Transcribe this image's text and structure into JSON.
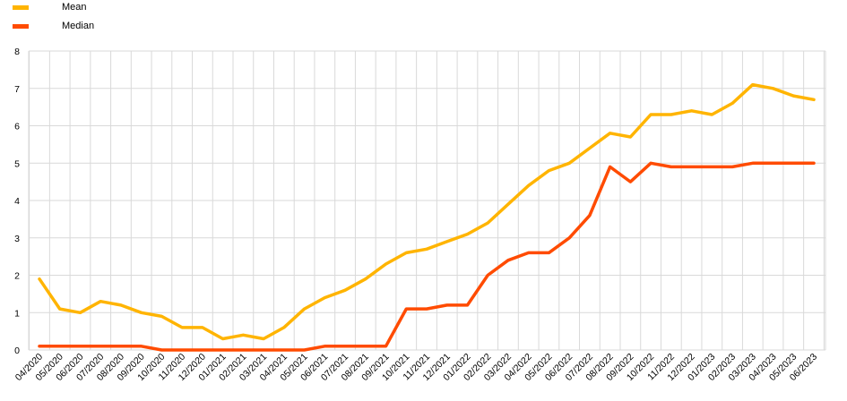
{
  "chart_data": {
    "type": "line",
    "title": "",
    "xlabel": "",
    "ylabel": "",
    "ylim": [
      0,
      8
    ],
    "yticks": [
      0,
      1,
      2,
      3,
      4,
      5,
      6,
      7,
      8
    ],
    "grid": true,
    "legend_position": "top-left",
    "categories": [
      "04/2020",
      "05/2020",
      "06/2020",
      "07/2020",
      "08/2020",
      "09/2020",
      "10/2020",
      "11/2020",
      "12/2020",
      "01/2021",
      "02/2021",
      "03/2021",
      "04/2021",
      "05/2021",
      "06/2021",
      "07/2021",
      "08/2021",
      "09/2021",
      "10/2021",
      "11/2021",
      "12/2021",
      "01/2022",
      "02/2022",
      "03/2022",
      "04/2022",
      "05/2022",
      "06/2022",
      "07/2022",
      "08/2022",
      "09/2022",
      "10/2022",
      "11/2022",
      "12/2022",
      "01/2023",
      "02/2023",
      "03/2023",
      "04/2023",
      "05/2023",
      "06/2023"
    ],
    "series": [
      {
        "name": "Mean",
        "color": "#FFB400",
        "values": [
          1.9,
          1.1,
          1.0,
          1.3,
          1.2,
          1.0,
          0.9,
          0.6,
          0.6,
          0.3,
          0.4,
          0.3,
          0.6,
          1.1,
          1.4,
          1.6,
          1.9,
          2.3,
          2.6,
          2.7,
          2.9,
          3.1,
          3.4,
          3.9,
          4.4,
          4.8,
          5.0,
          5.4,
          5.8,
          5.7,
          6.3,
          6.3,
          6.4,
          6.3,
          6.6,
          7.1,
          7.0,
          6.8,
          6.7
        ]
      },
      {
        "name": "Median",
        "color": "#FF4B00",
        "values": [
          0.1,
          0.1,
          0.1,
          0.1,
          0.1,
          0.1,
          0.0,
          0.0,
          0.0,
          0.0,
          0.0,
          0.0,
          0.0,
          0.0,
          0.1,
          0.1,
          0.1,
          0.1,
          1.1,
          1.1,
          1.2,
          1.2,
          2.0,
          2.4,
          2.6,
          2.6,
          3.0,
          3.6,
          4.9,
          4.5,
          5.0,
          4.9,
          4.9,
          4.9,
          4.9,
          5.0,
          5.0,
          5.0,
          5.0
        ]
      }
    ]
  }
}
